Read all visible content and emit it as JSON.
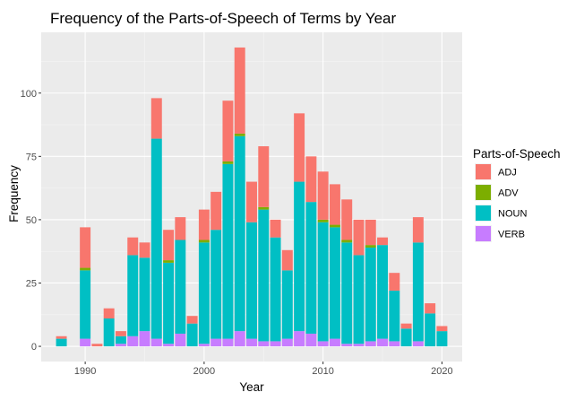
{
  "chart_data": {
    "type": "bar",
    "stacked": true,
    "title": "Frequency of the Parts-of-Speech of Terms by Year",
    "xlabel": "Year",
    "ylabel": "Frequency",
    "xlim": [
      1986.3,
      2021.7
    ],
    "ylim": [
      -6,
      124
    ],
    "xticks": [
      1990,
      2000,
      2010,
      2020
    ],
    "yticks": [
      0,
      25,
      50,
      75,
      100
    ],
    "grid": true,
    "legend": {
      "title": "Parts-of-Speech",
      "position": "right"
    },
    "x": [
      1988,
      1990,
      1991,
      1992,
      1993,
      1994,
      1995,
      1996,
      1997,
      1998,
      1999,
      2000,
      2001,
      2002,
      2003,
      2004,
      2005,
      2006,
      2007,
      2008,
      2009,
      2010,
      2011,
      2012,
      2013,
      2014,
      2015,
      2016,
      2017,
      2018,
      2019,
      2020
    ],
    "series": [
      {
        "name": "VERB",
        "color": "#C77CFF",
        "values": [
          0,
          3,
          0,
          0,
          1,
          4,
          6,
          3,
          1,
          5,
          0,
          1,
          3,
          3,
          6,
          3,
          2,
          2,
          3,
          6,
          5,
          2,
          3,
          1,
          1,
          2,
          3,
          2,
          0,
          2,
          0,
          0
        ]
      },
      {
        "name": "NOUN",
        "color": "#00BFC4",
        "values": [
          3,
          27,
          0,
          11,
          3,
          32,
          29,
          79,
          32,
          37,
          9,
          40,
          43,
          69,
          77,
          46,
          52,
          41,
          27,
          59,
          52,
          47,
          44,
          40,
          35,
          37,
          37,
          20,
          7,
          39,
          13,
          6
        ]
      },
      {
        "name": "ADV",
        "color": "#7CAE00",
        "values": [
          0,
          1,
          0,
          0,
          0,
          0,
          0,
          0,
          1,
          0,
          0,
          1,
          0,
          1,
          1,
          0,
          1,
          0,
          0,
          0,
          0,
          1,
          1,
          1,
          0,
          1,
          0,
          0,
          0,
          0,
          0,
          0
        ]
      },
      {
        "name": "ADJ",
        "color": "#F8766D",
        "values": [
          1,
          16,
          1,
          4,
          2,
          7,
          6,
          16,
          12,
          9,
          3,
          12,
          15,
          24,
          34,
          16,
          24,
          7,
          8,
          27,
          18,
          19,
          16,
          16,
          14,
          10,
          3,
          7,
          2,
          10,
          4,
          2
        ]
      }
    ],
    "legend_order": [
      "ADJ",
      "ADV",
      "NOUN",
      "VERB"
    ]
  }
}
